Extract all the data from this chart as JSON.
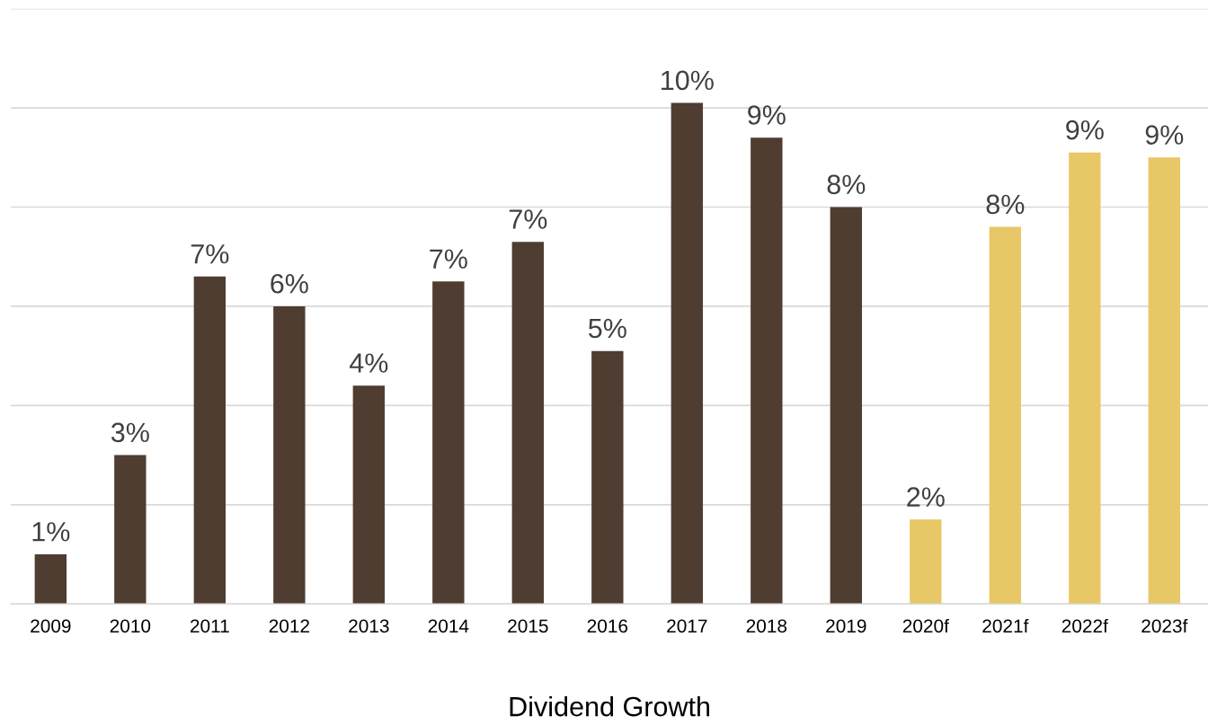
{
  "chart_data": {
    "type": "bar",
    "xlabel": "Dividend Growth",
    "categories": [
      "2009",
      "2010",
      "2011",
      "2012",
      "2013",
      "2014",
      "2015",
      "2016",
      "2017",
      "2018",
      "2019",
      "2020f",
      "2021f",
      "2022f",
      "2023f"
    ],
    "values": [
      1.0,
      3.0,
      6.6,
      6.0,
      4.4,
      6.5,
      7.3,
      5.1,
      10.1,
      9.4,
      8.0,
      1.7,
      7.6,
      9.1,
      9.0
    ],
    "value_labels": [
      "1%",
      "3%",
      "7%",
      "6%",
      "4%",
      "7%",
      "7%",
      "5%",
      "10%",
      "9%",
      "8%",
      "2%",
      "8%",
      "9%",
      "9%"
    ],
    "colors": [
      "#4f3d32",
      "#4f3d32",
      "#4f3d32",
      "#4f3d32",
      "#4f3d32",
      "#4f3d32",
      "#4f3d32",
      "#4f3d32",
      "#4f3d32",
      "#4f3d32",
      "#4f3d32",
      "#e8c766",
      "#e8c766",
      "#e8c766",
      "#e8c766"
    ],
    "ylim": [
      0,
      12
    ],
    "yticks": [
      {
        "value": 0,
        "label": null
      },
      {
        "value": 2,
        "label": null
      },
      {
        "value": 4,
        "label": null
      },
      {
        "value": 6,
        "label": null
      },
      {
        "value": 8,
        "label": null
      },
      {
        "value": 10,
        "label": null
      },
      {
        "value": 12,
        "label": null
      }
    ],
    "tick_labels": "x",
    "grid": "y",
    "legend": false
  }
}
